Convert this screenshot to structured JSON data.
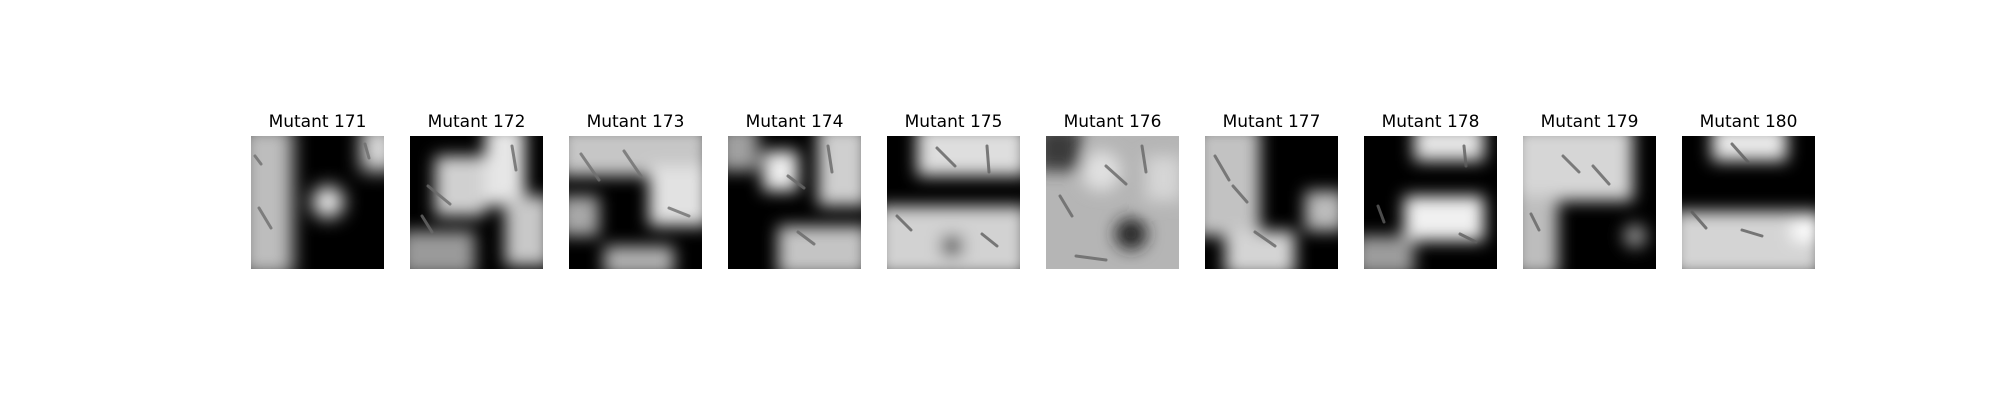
{
  "panels": [
    {
      "title": "Mutant 171",
      "image": "grayscale occlusion mask over faint specimen image"
    },
    {
      "title": "Mutant 172",
      "image": "grayscale occlusion mask over faint specimen image"
    },
    {
      "title": "Mutant 173",
      "image": "grayscale occlusion mask over faint specimen image"
    },
    {
      "title": "Mutant 174",
      "image": "grayscale occlusion mask over faint specimen image"
    },
    {
      "title": "Mutant 175",
      "image": "grayscale occlusion mask over faint specimen image"
    },
    {
      "title": "Mutant 176",
      "image": "grayscale occlusion mask over faint specimen image"
    },
    {
      "title": "Mutant 177",
      "image": "grayscale occlusion mask over faint specimen image"
    },
    {
      "title": "Mutant 178",
      "image": "grayscale occlusion mask over faint specimen image"
    },
    {
      "title": "Mutant 179",
      "image": "grayscale occlusion mask over faint specimen image"
    },
    {
      "title": "Mutant 180",
      "image": "grayscale occlusion mask over faint specimen image"
    }
  ],
  "colors": {
    "background": "#ffffff",
    "mask_dark": "#000000",
    "mask_light": "#f2f2f2",
    "title_text": "#000000"
  }
}
